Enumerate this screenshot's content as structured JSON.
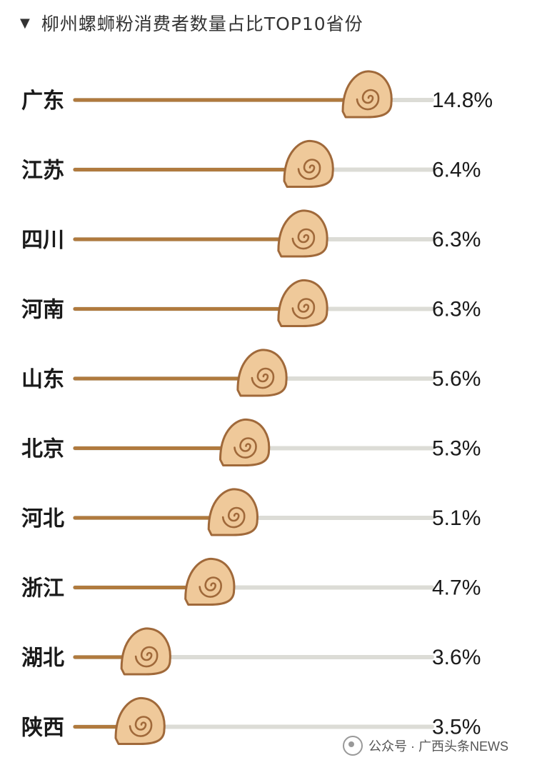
{
  "header": {
    "title": "柳州螺蛳粉消费者数量占比TOP10省份"
  },
  "chart_data": {
    "type": "bar",
    "title": "柳州螺蛳粉消费者数量占比TOP10省份",
    "categories": [
      "广东",
      "江苏",
      "四川",
      "河南",
      "山东",
      "北京",
      "河北",
      "浙江",
      "湖北",
      "陕西"
    ],
    "values": [
      14.8,
      6.4,
      6.3,
      6.3,
      5.6,
      5.3,
      5.1,
      4.7,
      3.6,
      3.5
    ],
    "value_labels": [
      "14.8%",
      "6.4%",
      "6.3%",
      "6.3%",
      "5.6%",
      "5.3%",
      "5.1%",
      "4.7%",
      "3.6%",
      "3.5%"
    ],
    "unit": "%",
    "orientation": "horizontal",
    "marker": "snail-shell-icon",
    "colors": {
      "bar": "#b07a3e",
      "track": "#dcdcd6",
      "shell_fill": "#efc99a",
      "shell_stroke": "#a0693a"
    }
  },
  "watermark": {
    "text": "公众号 · 广西头条NEWS"
  }
}
